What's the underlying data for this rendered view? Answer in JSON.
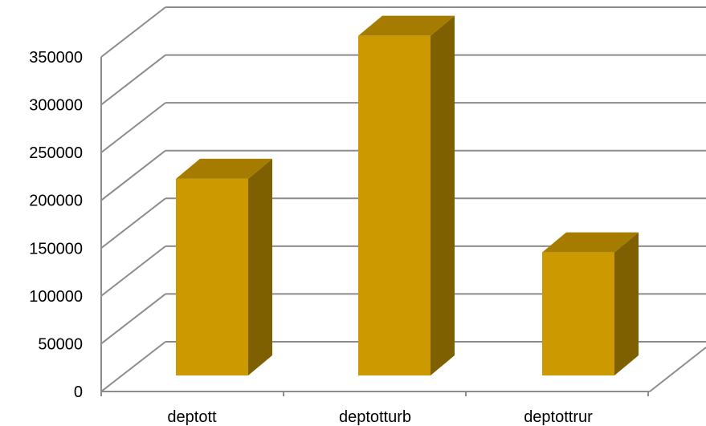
{
  "chart_data": {
    "type": "bar",
    "style": "3d-column",
    "title": "",
    "xlabel": "",
    "ylabel": "",
    "categories": [
      "deptott",
      "deptotturb",
      "deptottrur"
    ],
    "values": [
      187000,
      323000,
      117000
    ],
    "ylim": [
      0,
      350000
    ],
    "yticks": [
      0,
      50000,
      100000,
      150000,
      200000,
      250000,
      300000,
      350000
    ],
    "ytick_labels": [
      "0",
      "50000",
      "100000",
      "150000",
      "200000",
      "250000",
      "300000",
      "350000"
    ],
    "grid": true,
    "legend": "none",
    "colors": {
      "front": "#cc9900",
      "top": "#a57c00",
      "side": "#7f6000",
      "grid": "#8c8c8c"
    }
  }
}
